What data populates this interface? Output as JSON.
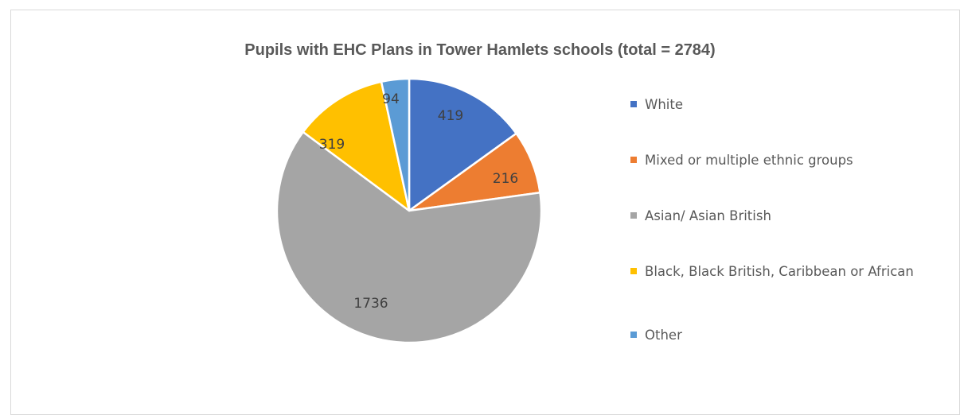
{
  "chart_data": {
    "type": "pie",
    "title": "Pupils with EHC Plans in Tower Hamlets schools (total = 2784)",
    "categories": [
      "White",
      "Mixed or multiple ethnic groups",
      "Asian/ Asian British",
      "Black, Black British, Caribbean or African",
      "Other"
    ],
    "values": [
      419,
      216,
      1736,
      319,
      94
    ],
    "colors": [
      "#4472c4",
      "#ed7d31",
      "#a5a5a5",
      "#ffc000",
      "#5b9bd5"
    ],
    "data_labels": [
      "419",
      "216",
      "1736",
      "319",
      "94"
    ],
    "legend_position": "right",
    "start_angle": "12 o'clock, clockwise"
  }
}
